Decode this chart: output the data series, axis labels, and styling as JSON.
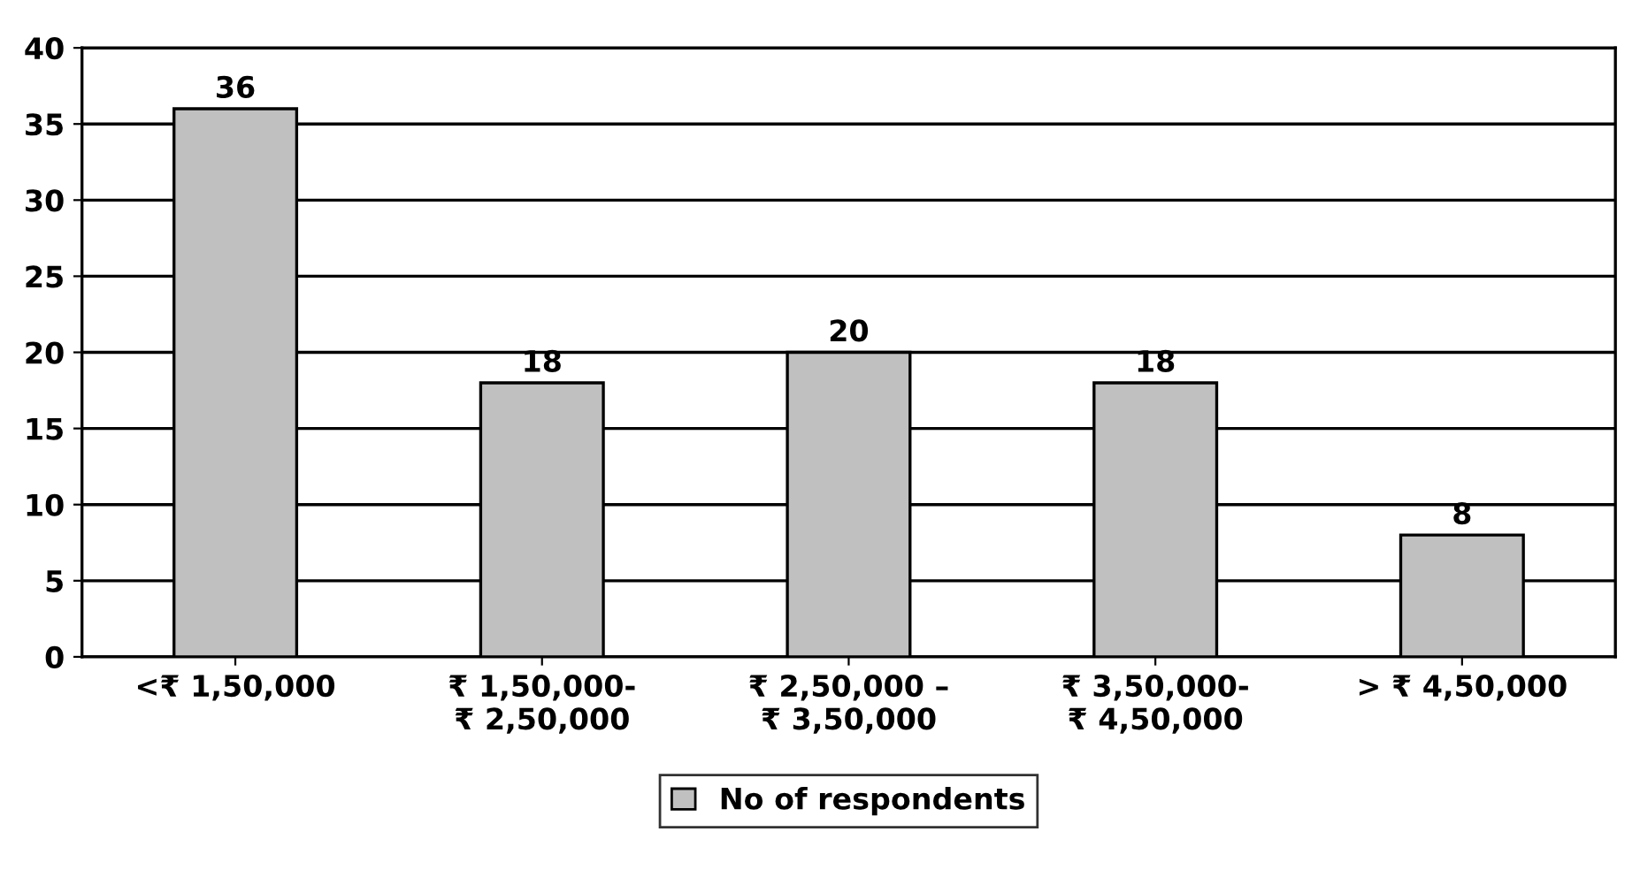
{
  "chart_data": {
    "type": "bar",
    "categories": [
      "<₹ 1,50,000",
      "₹ 1,50,000-\n₹ 2,50,000",
      "₹ 2,50,000 –\n₹ 3,50,000",
      "₹ 3,50,000-\n₹ 4,50,000",
      "> ₹ 4,50,000"
    ],
    "series": [
      {
        "name": "No of respondents",
        "color": "#c0c0c0",
        "values": [
          36,
          18,
          20,
          18,
          8
        ]
      }
    ],
    "ylim": [
      0,
      40
    ],
    "yticks": [
      0,
      5,
      10,
      15,
      20,
      25,
      30,
      35,
      40
    ],
    "grid": "y",
    "legend": "bottom",
    "data_labels": true
  }
}
